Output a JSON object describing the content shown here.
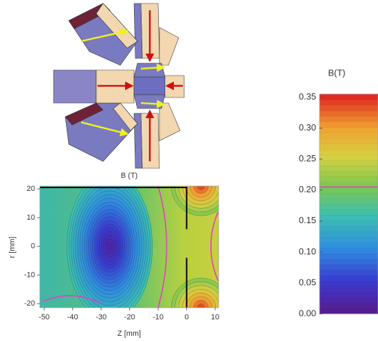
{
  "chart_data": {
    "type": "contour",
    "plot_title": "B (T)",
    "x_label": "Z [mm]",
    "y_label": "r [mm]",
    "xlim": [
      -51.5,
      11.2
    ],
    "ylim": [
      -21.4,
      21
    ],
    "xticks": [
      -50,
      -40,
      -30,
      -20,
      -10,
      0,
      10
    ],
    "yticks": [
      -20,
      -10,
      0,
      10,
      20
    ],
    "colorbar_title": "B(T)",
    "clim": [
      0,
      0.355
    ],
    "cticks": [
      {
        "value": 0,
        "label": "0.00"
      },
      0.05,
      {
        "value": 0.1,
        "label": "0.10"
      },
      0.15,
      {
        "value": 0.2,
        "label": "0.20"
      },
      0.25,
      {
        "value": 0.3,
        "label": "0.30"
      },
      0.35
    ],
    "highlight_level": 0.205,
    "highlight_color": "#e040c0"
  }
}
